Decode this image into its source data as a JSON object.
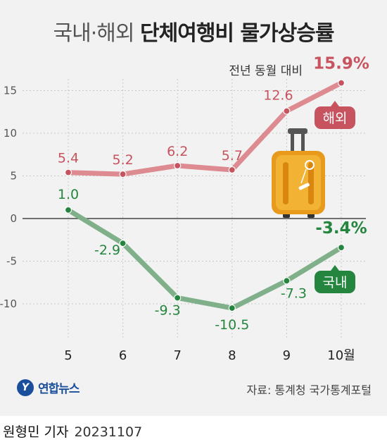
{
  "title_prefix": "국내·해외",
  "title_main": "단체여행비 물가상승률",
  "legend_note": "전년 동월 대비",
  "colors": {
    "overseas": "#c6535e",
    "overseas_line": "#dd8a90",
    "domestic": "#24863e",
    "domestic_line": "#7fb089",
    "grid": "#c8c8c8",
    "zero": "#444444"
  },
  "chart_data": {
    "type": "line",
    "title": "국내·해외 단체여행비 물가상승률",
    "subtitle": "전년 동월 대비",
    "categories": [
      "5",
      "6",
      "7",
      "8",
      "9",
      "10월"
    ],
    "ylim": [
      -15,
      17
    ],
    "yticks": [
      15,
      10,
      5,
      0,
      -5,
      -10
    ],
    "grid": true,
    "series": [
      {
        "name": "해외",
        "values": [
          5.4,
          5.2,
          6.2,
          5.7,
          12.6,
          15.9
        ],
        "labels": [
          "5.4",
          "5.2",
          "6.2",
          "5.7",
          "12.6",
          "15.9%"
        ]
      },
      {
        "name": "국내",
        "values": [
          1.0,
          -2.9,
          -9.3,
          -10.5,
          -7.3,
          -3.4
        ],
        "labels": [
          "1.0",
          "-2.9",
          "-9.3",
          "-10.5",
          "-7.3",
          "-3.4%"
        ]
      }
    ]
  },
  "icon": "suitcase-icon",
  "logo": {
    "text": "연합뉴스",
    "mark": "Y"
  },
  "source": "자료: 통계청 국가통계포털",
  "credit": {
    "name": "원형민 기자",
    "date": "20231107"
  }
}
